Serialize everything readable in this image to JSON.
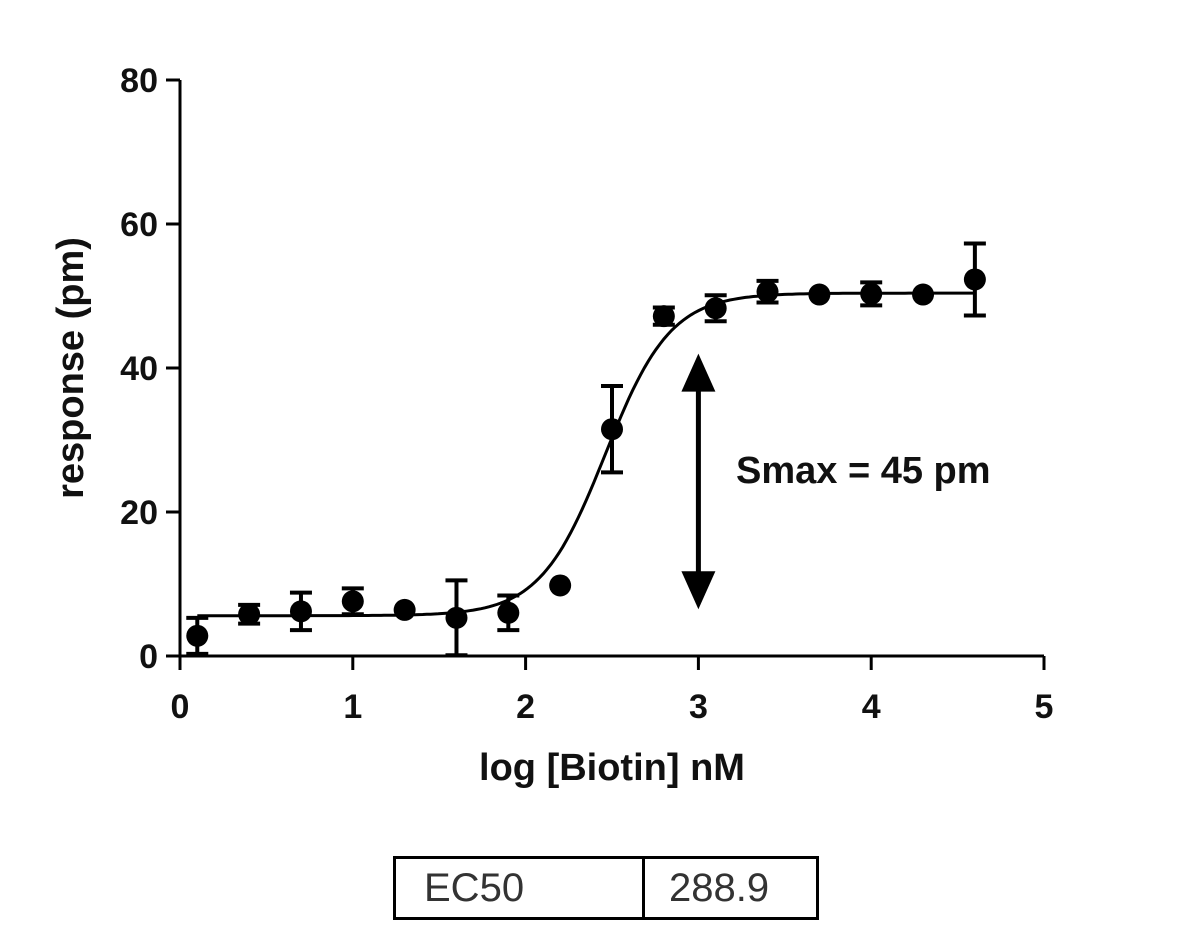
{
  "chart_data": {
    "type": "scatter",
    "xlabel": "log [Biotin] nM",
    "ylabel": "response (pm)",
    "xlim": [
      0,
      5
    ],
    "ylim": [
      0,
      80
    ],
    "x_ticks": [
      "0",
      "1",
      "2",
      "3",
      "4",
      "5"
    ],
    "y_ticks": [
      "0",
      "20",
      "40",
      "60",
      "80"
    ],
    "grid": false,
    "legend": "none",
    "series": [
      {
        "points": [
          {
            "x": 0.1,
            "y": 2.8,
            "err": 2.5
          },
          {
            "x": 0.4,
            "y": 5.8,
            "err": 1.3
          },
          {
            "x": 0.7,
            "y": 6.2,
            "err": 2.6
          },
          {
            "x": 1.0,
            "y": 7.6,
            "err": 1.8
          },
          {
            "x": 1.3,
            "y": 6.4,
            "err": 0
          },
          {
            "x": 1.6,
            "y": 5.3,
            "err": 5.2
          },
          {
            "x": 1.9,
            "y": 6.0,
            "err": 2.4
          },
          {
            "x": 2.2,
            "y": 9.8,
            "err": 0
          },
          {
            "x": 2.5,
            "y": 31.5,
            "err": 6.0
          },
          {
            "x": 2.8,
            "y": 47.2,
            "err": 1.2
          },
          {
            "x": 3.1,
            "y": 48.3,
            "err": 1.8
          },
          {
            "x": 3.4,
            "y": 50.6,
            "err": 1.5
          },
          {
            "x": 3.7,
            "y": 50.2,
            "err": 0
          },
          {
            "x": 4.0,
            "y": 50.3,
            "err": 1.6
          },
          {
            "x": 4.3,
            "y": 50.2,
            "err": 0
          },
          {
            "x": 4.6,
            "y": 52.3,
            "err": 5.0
          }
        ]
      }
    ],
    "fit_curve": {
      "model": "sigmoidal dose-response",
      "bottom": 5.6,
      "top": 50.4,
      "log_ec50": 2.461,
      "hill_slope": 2.3
    },
    "annotation": {
      "text": "Smax = 45 pm",
      "arrow_x": 3.0,
      "arrow_y_range": [
        6.5,
        42.0
      ]
    }
  },
  "results_table": {
    "label": "EC50",
    "value": "288.9"
  }
}
